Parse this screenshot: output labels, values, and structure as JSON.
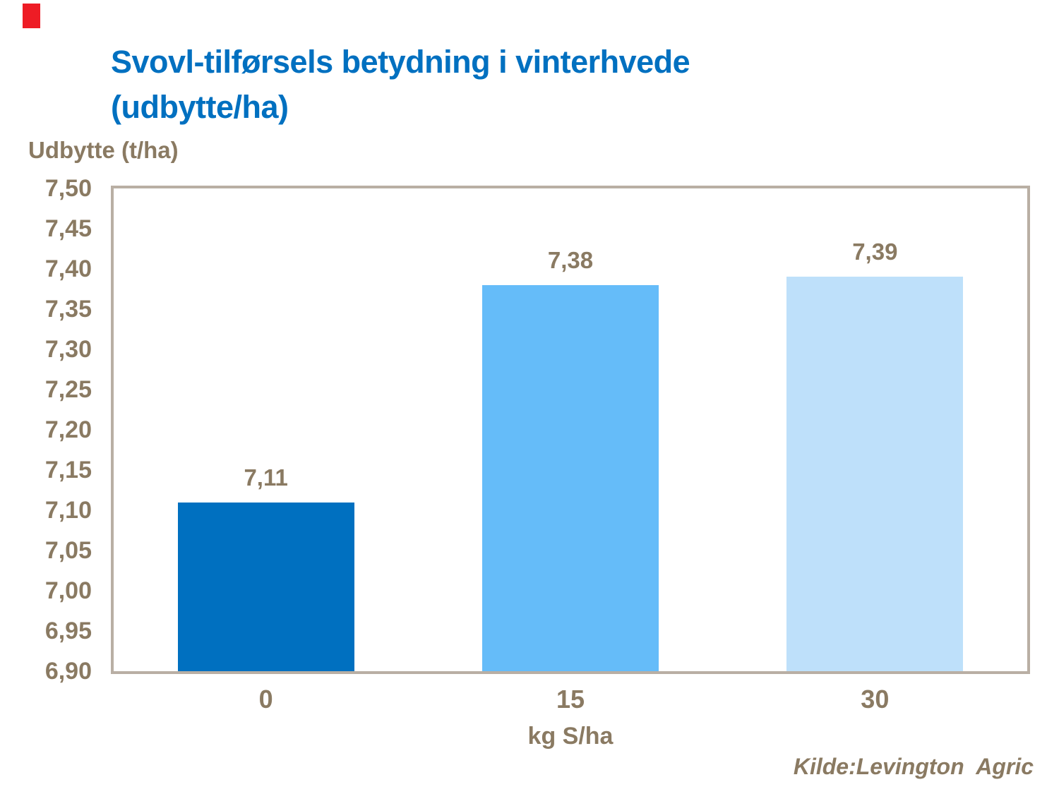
{
  "slide": {
    "accent_color": "#EE1C25",
    "title_color": "#0070C0",
    "text_color": "#8A7A62",
    "frame_color": "#B9AFA4",
    "title_line1": "Svovl-tilførsels betydning i vinterhvede",
    "title_line2": "(udbytte/ha)",
    "y_axis_title": "Udbytte (t/ha)",
    "x_axis_title": "kg S/ha",
    "source_text": "Kilde:Levington  Agric"
  },
  "chart_data": {
    "type": "bar",
    "title": "Svovl-tilførsels betydning i vinterhvede (udbytte/ha)",
    "ylabel": "Udbytte (t/ha)",
    "xlabel": "kg S/ha",
    "categories": [
      "0",
      "15",
      "30"
    ],
    "values": [
      7.11,
      7.38,
      7.39
    ],
    "value_labels": [
      "7,11",
      "7,38",
      "7,39"
    ],
    "bar_colors": [
      "#0070C0",
      "#65BCF9",
      "#BEE0FA"
    ],
    "ylim": [
      6.9,
      7.5
    ],
    "ytick_step": 0.05,
    "ytick_labels": [
      "7,50",
      "7,45",
      "7,40",
      "7,35",
      "7,30",
      "7,25",
      "7,20",
      "7,15",
      "7,10",
      "7,05",
      "7,00",
      "6,95",
      "6,90"
    ],
    "grid": false,
    "legend": null,
    "source": "Kilde:Levington  Agric"
  }
}
